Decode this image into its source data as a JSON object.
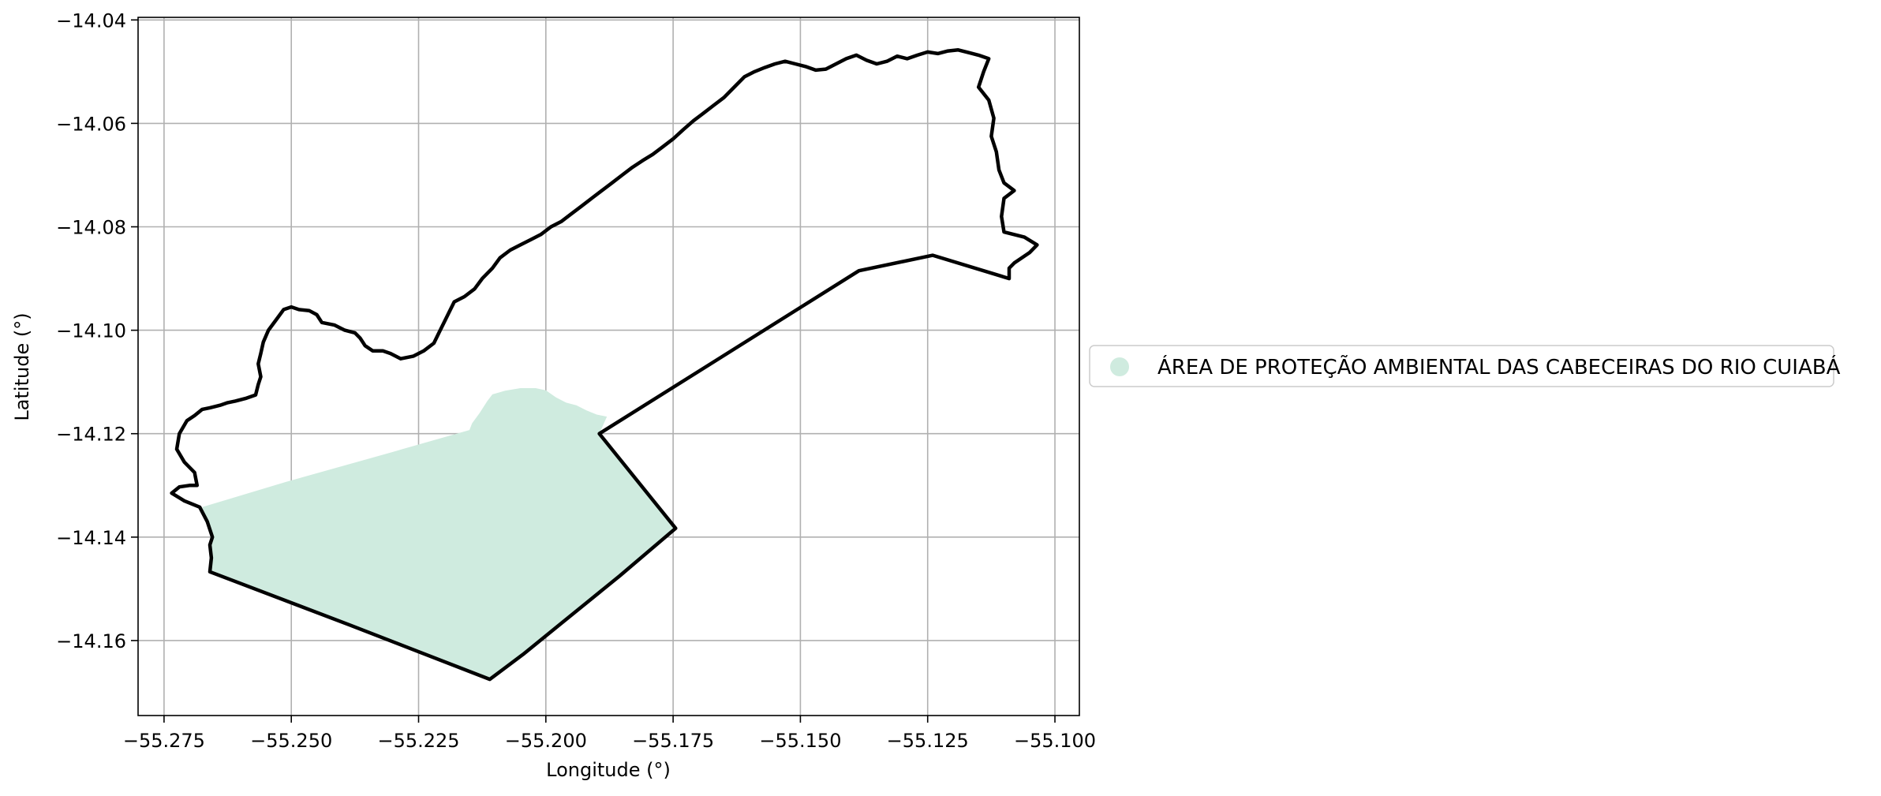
{
  "chart_data": {
    "type": "map",
    "title": "",
    "xlabel": "Longitude (°)",
    "ylabel": "Latitude (°)",
    "xlim": [
      -55.2801,
      -55.0952
    ],
    "ylim": [
      -14.1745,
      -14.0395
    ],
    "x_ticks": [
      -55.275,
      -55.25,
      -55.225,
      -55.2,
      -55.175,
      -55.15,
      -55.125,
      -55.1
    ],
    "x_tick_labels": [
      "−55.275",
      "−55.250",
      "−55.225",
      "−55.200",
      "−55.175",
      "−55.150",
      "−55.125",
      "−55.100"
    ],
    "y_ticks": [
      -14.04,
      -14.06,
      -14.08,
      -14.1,
      -14.12,
      -14.14,
      -14.16
    ],
    "y_tick_labels": [
      "−14.04",
      "−14.06",
      "−14.08",
      "−14.10",
      "−14.12",
      "−14.14",
      "−14.16"
    ],
    "grid": true,
    "legend": {
      "placement": "right, outside plot",
      "entries": [
        {
          "label": "ÁREA DE PROTEÇÃO AMBIENTAL DAS CABECEIRAS DO RIO CUIABÁ",
          "color": "#cfebdf",
          "marker": "circle"
        }
      ]
    },
    "layers": [
      {
        "name": "ÁREA DE PROTEÇÃO AMBIENTAL DAS CABECEIRAS DO RIO CUIABÁ",
        "kind": "filled-polygon",
        "color": "#cfebdf",
        "coordinates": [
          [
            -55.2675,
            -14.1342
          ],
          [
            -55.251,
            -14.1293
          ],
          [
            -55.23,
            -14.1235
          ],
          [
            -55.215,
            -14.1193
          ],
          [
            -55.2145,
            -14.118
          ],
          [
            -55.213,
            -14.116
          ],
          [
            -55.2115,
            -14.1137
          ],
          [
            -55.2105,
            -14.1124
          ],
          [
            -55.208,
            -14.1117
          ],
          [
            -55.205,
            -14.1112
          ],
          [
            -55.202,
            -14.1112
          ],
          [
            -55.2,
            -14.1116
          ],
          [
            -55.198,
            -14.113
          ],
          [
            -55.196,
            -14.114
          ],
          [
            -55.194,
            -14.1145
          ],
          [
            -55.192,
            -14.1155
          ],
          [
            -55.19,
            -14.1163
          ],
          [
            -55.188,
            -14.1167
          ],
          [
            -55.1895,
            -14.12
          ],
          [
            -55.1745,
            -14.1383
          ],
          [
            -55.1855,
            -14.1475
          ],
          [
            -55.197,
            -14.1567
          ],
          [
            -55.2045,
            -14.1627
          ],
          [
            -55.211,
            -14.1675
          ],
          [
            -55.2385,
            -14.157
          ],
          [
            -55.266,
            -14.1467
          ],
          [
            -55.2657,
            -14.144
          ],
          [
            -55.266,
            -14.1415
          ],
          [
            -55.2655,
            -14.14
          ],
          [
            -55.2665,
            -14.137
          ]
        ]
      },
      {
        "name": "boundary",
        "kind": "outline",
        "color": "#000000",
        "coordinates": [
          [
            -55.2735,
            -14.1315
          ],
          [
            -55.272,
            -14.1303
          ],
          [
            -55.27,
            -14.13
          ],
          [
            -55.2685,
            -14.13
          ],
          [
            -55.269,
            -14.1275
          ],
          [
            -55.271,
            -14.1255
          ],
          [
            -55.2725,
            -14.123
          ],
          [
            -55.272,
            -14.12
          ],
          [
            -55.2705,
            -14.1175
          ],
          [
            -55.269,
            -14.1165
          ],
          [
            -55.2675,
            -14.1153
          ],
          [
            -55.266,
            -14.115
          ],
          [
            -55.264,
            -14.1145
          ],
          [
            -55.2625,
            -14.114
          ],
          [
            -55.261,
            -14.1137
          ],
          [
            -55.259,
            -14.1132
          ],
          [
            -55.257,
            -14.1125
          ],
          [
            -55.2565,
            -14.1105
          ],
          [
            -55.256,
            -14.109
          ],
          [
            -55.2565,
            -14.1065
          ],
          [
            -55.256,
            -14.1045
          ],
          [
            -55.2555,
            -14.1023
          ],
          [
            -55.2545,
            -14.1
          ],
          [
            -55.253,
            -14.098
          ],
          [
            -55.2515,
            -14.096
          ],
          [
            -55.25,
            -14.0955
          ],
          [
            -55.2485,
            -14.096
          ],
          [
            -55.2465,
            -14.0962
          ],
          [
            -55.245,
            -14.097
          ],
          [
            -55.244,
            -14.0985
          ],
          [
            -55.2415,
            -14.099
          ],
          [
            -55.2395,
            -14.1
          ],
          [
            -55.2375,
            -14.1005
          ],
          [
            -55.2365,
            -14.1015
          ],
          [
            -55.2355,
            -14.103
          ],
          [
            -55.234,
            -14.104
          ],
          [
            -55.232,
            -14.104
          ],
          [
            -55.2305,
            -14.1045
          ],
          [
            -55.2285,
            -14.1055
          ],
          [
            -55.226,
            -14.105
          ],
          [
            -55.224,
            -14.104
          ],
          [
            -55.222,
            -14.1025
          ],
          [
            -55.221,
            -14.1005
          ],
          [
            -55.22,
            -14.0985
          ],
          [
            -55.219,
            -14.0965
          ],
          [
            -55.218,
            -14.0945
          ],
          [
            -55.216,
            -14.0935
          ],
          [
            -55.214,
            -14.092
          ],
          [
            -55.2125,
            -14.09
          ],
          [
            -55.2105,
            -14.088
          ],
          [
            -55.209,
            -14.086
          ],
          [
            -55.207,
            -14.0845
          ],
          [
            -55.205,
            -14.0835
          ],
          [
            -55.203,
            -14.0825
          ],
          [
            -55.201,
            -14.0815
          ],
          [
            -55.199,
            -14.08
          ],
          [
            -55.197,
            -14.079
          ],
          [
            -55.195,
            -14.0775
          ],
          [
            -55.193,
            -14.076
          ],
          [
            -55.191,
            -14.0745
          ],
          [
            -55.189,
            -14.073
          ],
          [
            -55.187,
            -14.0715
          ],
          [
            -55.185,
            -14.07
          ],
          [
            -55.183,
            -14.0685
          ],
          [
            -55.181,
            -14.0672
          ],
          [
            -55.179,
            -14.066
          ],
          [
            -55.177,
            -14.0645
          ],
          [
            -55.175,
            -14.063
          ],
          [
            -55.173,
            -14.0612
          ],
          [
            -55.171,
            -14.0595
          ],
          [
            -55.169,
            -14.058
          ],
          [
            -55.167,
            -14.0565
          ],
          [
            -55.165,
            -14.055
          ],
          [
            -55.163,
            -14.053
          ],
          [
            -55.161,
            -14.051
          ],
          [
            -55.159,
            -14.05
          ],
          [
            -55.157,
            -14.0492
          ],
          [
            -55.155,
            -14.0485
          ],
          [
            -55.153,
            -14.048
          ],
          [
            -55.151,
            -14.0485
          ],
          [
            -55.149,
            -14.049
          ],
          [
            -55.147,
            -14.0497
          ],
          [
            -55.145,
            -14.0495
          ],
          [
            -55.143,
            -14.0485
          ],
          [
            -55.141,
            -14.0475
          ],
          [
            -55.139,
            -14.0468
          ],
          [
            -55.137,
            -14.0478
          ],
          [
            -55.135,
            -14.0485
          ],
          [
            -55.133,
            -14.048
          ],
          [
            -55.131,
            -14.047
          ],
          [
            -55.129,
            -14.0475
          ],
          [
            -55.127,
            -14.0468
          ],
          [
            -55.125,
            -14.0462
          ],
          [
            -55.123,
            -14.0465
          ],
          [
            -55.121,
            -14.046
          ],
          [
            -55.119,
            -14.0458
          ],
          [
            -55.117,
            -14.0463
          ],
          [
            -55.115,
            -14.0468
          ],
          [
            -55.113,
            -14.0475
          ],
          [
            -55.114,
            -14.05
          ],
          [
            -55.115,
            -14.053
          ],
          [
            -55.113,
            -14.0555
          ],
          [
            -55.112,
            -14.059
          ],
          [
            -55.1125,
            -14.0625
          ],
          [
            -55.1115,
            -14.0655
          ],
          [
            -55.111,
            -14.069
          ],
          [
            -55.11,
            -14.0715
          ],
          [
            -55.108,
            -14.073
          ],
          [
            -55.11,
            -14.0745
          ],
          [
            -55.1105,
            -14.078
          ],
          [
            -55.11,
            -14.081
          ],
          [
            -55.106,
            -14.082
          ],
          [
            -55.1035,
            -14.0835
          ],
          [
            -55.105,
            -14.085
          ],
          [
            -55.108,
            -14.087
          ],
          [
            -55.109,
            -14.088
          ],
          [
            -55.109,
            -14.09
          ],
          [
            -55.124,
            -14.0855
          ],
          [
            -55.1385,
            -14.0885
          ],
          [
            -55.1895,
            -14.12
          ],
          [
            -55.1745,
            -14.1383
          ],
          [
            -55.1855,
            -14.1475
          ],
          [
            -55.197,
            -14.1567
          ],
          [
            -55.2045,
            -14.1627
          ],
          [
            -55.211,
            -14.1675
          ],
          [
            -55.2385,
            -14.157
          ],
          [
            -55.266,
            -14.1467
          ],
          [
            -55.2657,
            -14.144
          ],
          [
            -55.266,
            -14.1415
          ],
          [
            -55.2655,
            -14.14
          ],
          [
            -55.2665,
            -14.137
          ],
          [
            -55.268,
            -14.1342
          ],
          [
            -55.271,
            -14.133
          ],
          [
            -55.2735,
            -14.1315
          ]
        ]
      }
    ]
  }
}
